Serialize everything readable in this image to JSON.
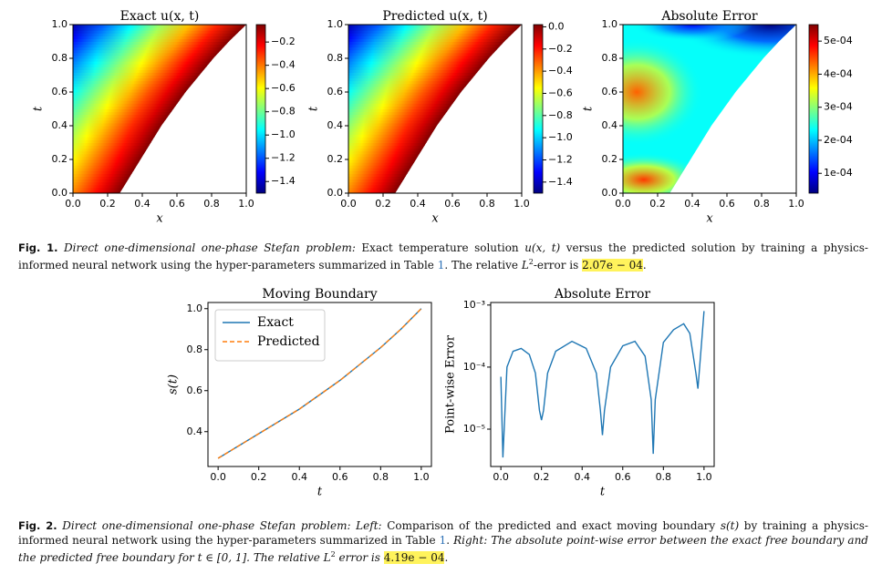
{
  "figure1": {
    "panels": [
      {
        "type": "heatmap",
        "field": "solution",
        "title": "Exact u(x, t)",
        "xlabel": "x",
        "ylabel": "t",
        "xlim": [
          0,
          1
        ],
        "ylim": [
          0,
          1
        ],
        "xticks": [
          {
            "value": 0,
            "label": "0.0"
          },
          0.2,
          0.4,
          0.6,
          0.8,
          {
            "value": 1,
            "label": "1.0"
          }
        ],
        "yticks": [
          {
            "value": 0,
            "label": "0.0"
          },
          0.2,
          0.4,
          0.6,
          0.8,
          {
            "value": 1,
            "label": "1.0"
          }
        ],
        "clim": [
          -1.5,
          -0.05
        ],
        "cticks": [
          {
            "value": -0.2,
            "label": "−0.2"
          },
          {
            "value": -0.4,
            "label": "−0.4"
          },
          {
            "value": -0.6,
            "label": "−0.6"
          },
          {
            "value": -0.8,
            "label": "−0.8"
          },
          {
            "value": -1.0,
            "label": "−1.0"
          },
          {
            "value": -1.2,
            "label": "−1.2"
          },
          {
            "value": -1.4,
            "label": "−1.4"
          }
        ]
      },
      {
        "type": "heatmap",
        "field": "solution",
        "title": "Predicted u(x, t)",
        "xlabel": "x",
        "ylabel": "t",
        "xlim": [
          0,
          1
        ],
        "ylim": [
          0,
          1
        ],
        "xticks": [
          {
            "value": 0,
            "label": "0.0"
          },
          0.2,
          0.4,
          0.6,
          0.8,
          {
            "value": 1,
            "label": "1.0"
          }
        ],
        "yticks": [
          {
            "value": 0,
            "label": "0.0"
          },
          0.2,
          0.4,
          0.6,
          0.8,
          {
            "value": 1,
            "label": "1.0"
          }
        ],
        "clim": [
          -1.5,
          0.02
        ],
        "cticks": [
          {
            "value": 0,
            "label": "0.0"
          },
          {
            "value": -0.2,
            "label": "−0.2"
          },
          {
            "value": -0.4,
            "label": "−0.4"
          },
          {
            "value": -0.6,
            "label": "−0.6"
          },
          {
            "value": -0.8,
            "label": "−0.8"
          },
          {
            "value": -1.0,
            "label": "−1.0"
          },
          {
            "value": -1.2,
            "label": "−1.2"
          },
          {
            "value": -1.4,
            "label": "−1.4"
          }
        ]
      },
      {
        "type": "heatmap",
        "field": "error",
        "title": "Absolute Error",
        "xlabel": "x",
        "ylabel": "t",
        "xlim": [
          0,
          1
        ],
        "ylim": [
          0,
          1
        ],
        "xticks": [
          {
            "value": 0,
            "label": "0.0"
          },
          0.2,
          0.4,
          0.6,
          0.8,
          {
            "value": 1,
            "label": "1.0"
          }
        ],
        "yticks": [
          {
            "value": 0,
            "label": "0.0"
          },
          0.2,
          0.4,
          0.6,
          0.8,
          {
            "value": 1,
            "label": "1.0"
          }
        ],
        "clim": [
          4e-05,
          0.00055
        ],
        "cticks": [
          {
            "value": 0.0005,
            "label": "5e-04"
          },
          {
            "value": 0.0004,
            "label": "4e-04"
          },
          {
            "value": 0.0003,
            "label": "3e-04"
          },
          {
            "value": 0.0002,
            "label": "2e-04"
          },
          {
            "value": 0.0001,
            "label": "1e-04"
          }
        ]
      }
    ],
    "caption": {
      "label": "Fig. 1.",
      "runs": [
        {
          "text": "Direct one-dimensional one-phase Stefan problem:",
          "style": "italic"
        },
        {
          "text": " Exact temperature solution ",
          "style": "normal"
        },
        {
          "text": "u(x, t)",
          "style": "italic"
        },
        {
          "text": " versus the predicted solution by training a physics-informed neural network using the hyper-parameters summarized in Table ",
          "style": "normal"
        },
        {
          "text": "1",
          "style": "link"
        },
        {
          "text": ". The relative ",
          "style": "normal"
        },
        {
          "text": "L",
          "style": "italic"
        },
        {
          "text": "2",
          "style": "sup"
        },
        {
          "text": "-error is ",
          "style": "normal"
        },
        {
          "text": "2.07e − 04",
          "style": "highlight"
        },
        {
          "text": ".",
          "style": "normal"
        }
      ]
    }
  },
  "figure2": {
    "charts": [
      {
        "type": "line",
        "title": "Moving Boundary",
        "xlabel": "t",
        "ylabel": "s(t)",
        "legend": "upper left",
        "x": [
          0,
          0.1,
          0.2,
          0.3,
          0.4,
          0.5,
          0.6,
          0.7,
          0.8,
          0.9,
          1.0
        ],
        "series": [
          {
            "name": "Exact",
            "color": "#1f77b4",
            "dash": "solid",
            "values": [
              0.27,
              0.33,
              0.39,
              0.45,
              0.51,
              0.58,
              0.65,
              0.73,
              0.81,
              0.9,
              1.0
            ]
          },
          {
            "name": "Predicted",
            "color": "#ff7f0e",
            "dash": "dashed",
            "values": [
              0.27,
              0.33,
              0.39,
              0.45,
              0.51,
              0.58,
              0.65,
              0.73,
              0.81,
              0.9,
              1.0
            ]
          }
        ],
        "xlim": [
          -0.05,
          1.05
        ],
        "ylim": [
          0.23,
          1.03
        ],
        "xticks": [
          {
            "value": 0,
            "label": "0.0"
          },
          0.2,
          0.4,
          0.6,
          0.8,
          {
            "value": 1,
            "label": "1.0"
          }
        ],
        "yticks": [
          0.4,
          0.6,
          0.8,
          {
            "value": 1,
            "label": "1.0"
          }
        ]
      },
      {
        "type": "line",
        "title": "Absolute Error",
        "xlabel": "t",
        "ylabel": "Point-wise Error",
        "yscale": "log",
        "x": [
          0,
          0.01,
          0.03,
          0.06,
          0.1,
          0.14,
          0.17,
          0.19,
          0.2,
          0.21,
          0.23,
          0.27,
          0.35,
          0.42,
          0.47,
          0.49,
          0.5,
          0.51,
          0.54,
          0.6,
          0.66,
          0.71,
          0.74,
          0.75,
          0.76,
          0.8,
          0.85,
          0.9,
          0.93,
          0.96,
          0.97,
          0.99,
          1.0
        ],
        "series": [
          {
            "name": "Error",
            "color": "#1f77b4",
            "dash": "solid",
            "values": [
              7e-05,
              3.5e-06,
              0.0001,
              0.00018,
              0.0002,
              0.00016,
              8e-05,
              2e-05,
              1.4e-05,
              2e-05,
              8e-05,
              0.00018,
              0.00026,
              0.0002,
              8e-05,
              2e-05,
              8e-06,
              2e-05,
              0.0001,
              0.00022,
              0.00026,
              0.00015,
              3e-05,
              4e-06,
              3e-05,
              0.00025,
              0.0004,
              0.0005,
              0.00035,
              8e-05,
              4.5e-05,
              0.0003,
              0.0008
            ]
          }
        ],
        "xlim": [
          -0.05,
          1.05
        ],
        "ylim": [
          2.5e-06,
          0.0011
        ],
        "xticks": [
          {
            "value": 0,
            "label": "0.0"
          },
          0.2,
          0.4,
          0.6,
          0.8,
          {
            "value": 1,
            "label": "1.0"
          }
        ],
        "yticks": [
          {
            "value": 1e-05,
            "label": "10⁻⁵"
          },
          {
            "value": 0.0001,
            "label": "10⁻⁴"
          },
          {
            "value": 0.001,
            "label": "10⁻³"
          }
        ]
      }
    ],
    "caption": {
      "label": "Fig. 2.",
      "runs": [
        {
          "text": "Direct one-dimensional one-phase Stefan problem: Left:",
          "style": "italic"
        },
        {
          "text": " Comparison of the predicted and exact moving boundary ",
          "style": "normal"
        },
        {
          "text": "s(t)",
          "style": "italic"
        },
        {
          "text": " by training a physics-informed neural network using the hyper-parameters summarized in Table ",
          "style": "normal"
        },
        {
          "text": "1",
          "style": "link"
        },
        {
          "text": ". ",
          "style": "normal"
        },
        {
          "text": "Right: The absolute point-wise error between the exact free boundary and the predicted free boundary for t ∈ [0, 1]. The relative ",
          "style": "italic"
        },
        {
          "text": "L",
          "style": "italic"
        },
        {
          "text": "2",
          "style": "sup"
        },
        {
          "text": " error is ",
          "style": "italic"
        },
        {
          "text": "4.19e − 04",
          "style": "highlight"
        },
        {
          "text": ".",
          "style": "normal"
        }
      ]
    }
  }
}
